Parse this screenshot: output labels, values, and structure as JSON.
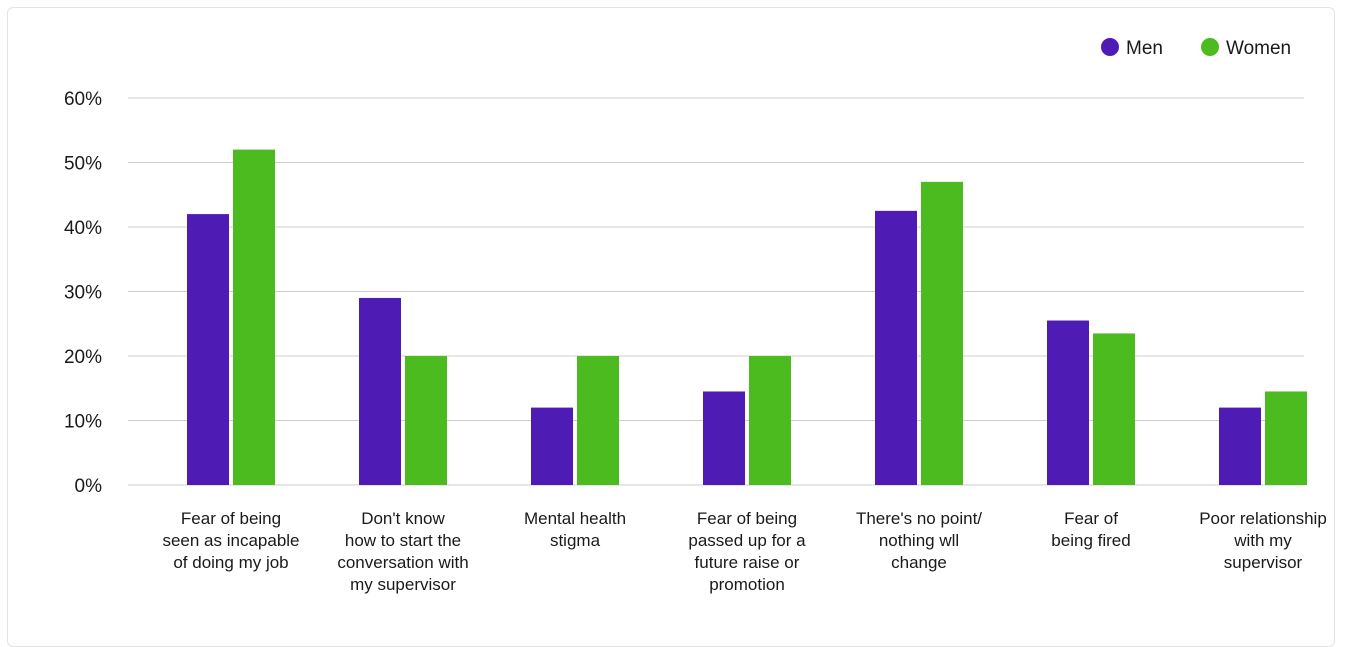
{
  "colors": {
    "men": "#4f1bb5",
    "women": "#4cbb1f"
  },
  "legend": {
    "placement": "top-right"
  },
  "chart_data": {
    "type": "bar",
    "title": "",
    "xlabel": "",
    "ylabel": "",
    "ylim": [
      0,
      60
    ],
    "yticks": [
      "0%",
      "10%",
      "20%",
      "30%",
      "40%",
      "50%",
      "60%"
    ],
    "grid": true,
    "categories": [
      [
        "Fear of being",
        "seen as incapable",
        "of doing my job"
      ],
      [
        "Don't know",
        "how to start the",
        "conversation with",
        "my supervisor"
      ],
      [
        "Mental health",
        "stigma"
      ],
      [
        "Fear of being",
        "passed up for a",
        "future raise or",
        "promotion"
      ],
      [
        "There's no point/",
        "nothing wll",
        "change"
      ],
      [
        "Fear of",
        "being fired"
      ],
      [
        "Poor relationship",
        "with my",
        "supervisor"
      ]
    ],
    "series": [
      {
        "name": "Men",
        "values": [
          42,
          29,
          12,
          14.5,
          42.5,
          25.5,
          12
        ]
      },
      {
        "name": "Women",
        "values": [
          52,
          20,
          20,
          20,
          47,
          23.5,
          14.5
        ]
      }
    ]
  }
}
